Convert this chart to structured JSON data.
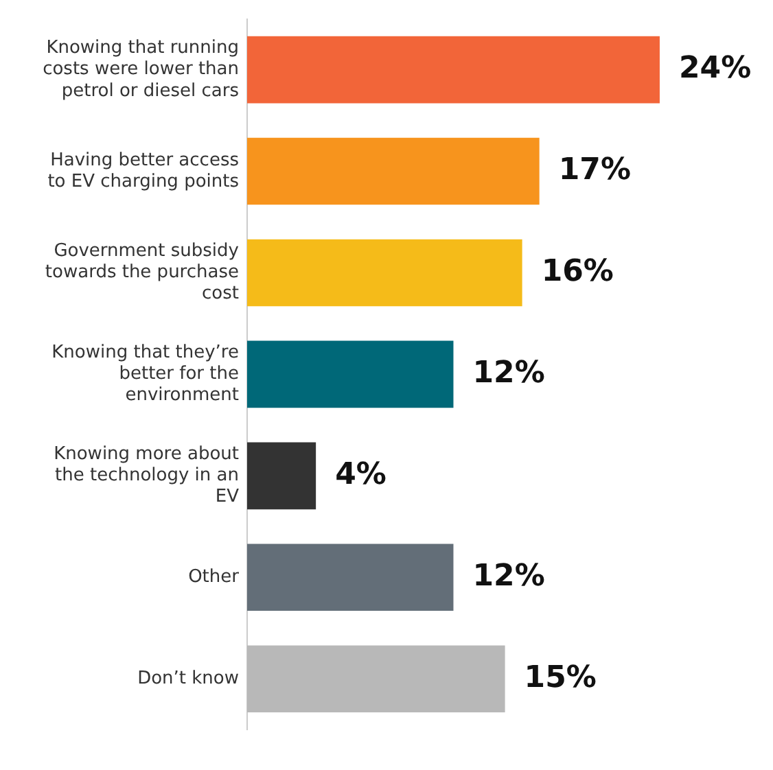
{
  "chart_data": {
    "type": "bar",
    "orientation": "horizontal",
    "categories": [
      "Knowing that running costs were lower than petrol or diesel cars",
      "Having better access to EV charging points",
      "Government subsidy towards the purchase cost",
      "Knowing that they’re better for the environment",
      "Knowing more about the technology in an EV",
      "Other",
      "Don’t know"
    ],
    "values": [
      24,
      17,
      16,
      12,
      4,
      12,
      15
    ],
    "colors": [
      "#f26539",
      "#f7941d",
      "#f5bb19",
      "#006878",
      "#333333",
      "#636e78",
      "#b8b8b8"
    ],
    "value_labels": [
      "24%",
      "17%",
      "16%",
      "12%",
      "4%",
      "12%",
      "15%"
    ],
    "tick_labels": "y",
    "grid": false,
    "legend": false
  }
}
